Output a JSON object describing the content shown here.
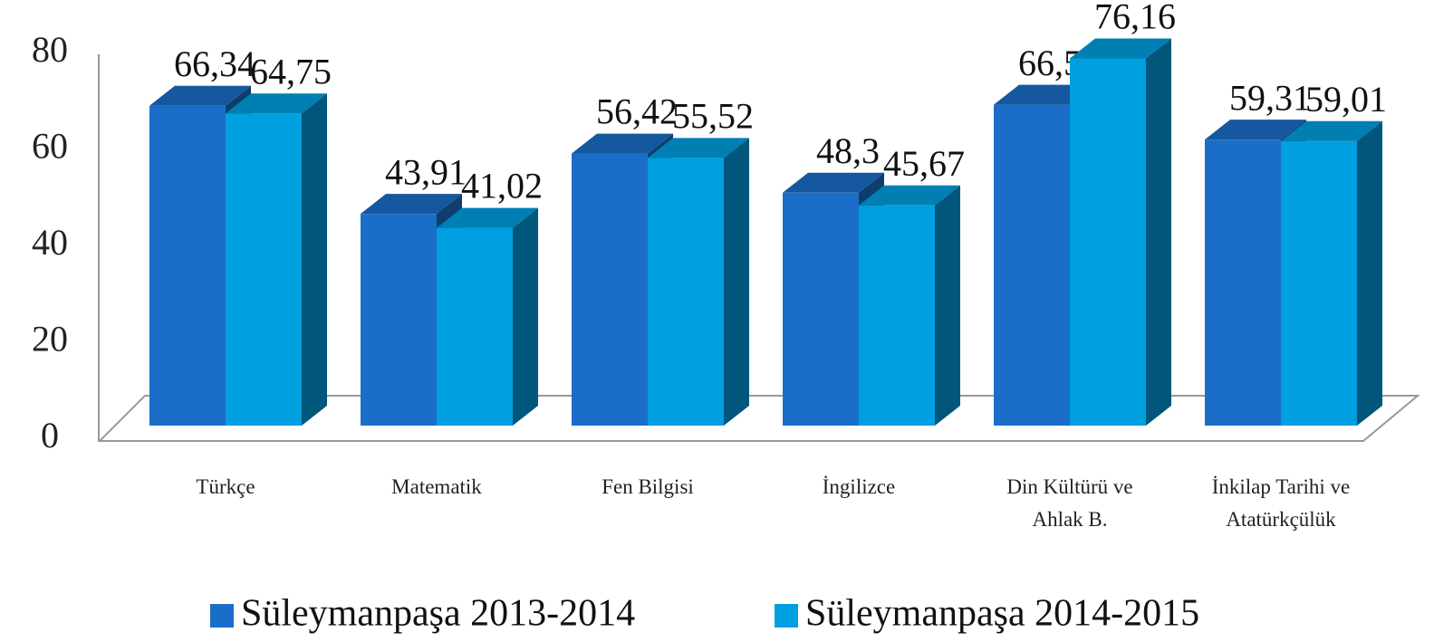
{
  "chart_data": {
    "type": "bar3d",
    "categories": [
      "Türkçe",
      "Matematik",
      "Fen Bilgisi",
      "İngilizce",
      "Din Kültürü ve Ahlak B.",
      "İnkilap Tarihi ve Atatürkçülük"
    ],
    "series": [
      {
        "name": "Süleymanpaşa 2013-2014",
        "color": "#1a6ec8",
        "values": [
          66.34,
          43.91,
          56.42,
          48.3,
          66.55,
          59.31
        ],
        "value_labels": [
          "66,34",
          "43,91",
          "56,42",
          "48,3",
          "66,55",
          "59,31"
        ]
      },
      {
        "name": "Süleymanpaşa 2014-2015",
        "color": "#009fe0",
        "values": [
          64.75,
          41.02,
          55.52,
          45.67,
          76.16,
          59.01
        ],
        "value_labels": [
          "64,75",
          "41,02",
          "55,52",
          "45,67",
          "76,16",
          "59,01"
        ]
      }
    ],
    "ylim": [
      0,
      80
    ],
    "yticks": [
      0,
      20,
      40,
      60,
      80
    ],
    "legend": "bottom"
  }
}
